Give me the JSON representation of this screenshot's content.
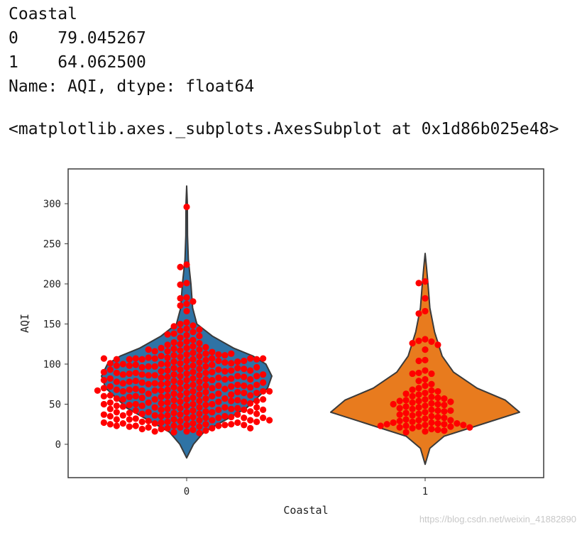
{
  "output": {
    "series_name": "Coastal",
    "rows": [
      {
        "index": "0",
        "value": "79.045267"
      },
      {
        "index": "1",
        "value": "64.062500"
      }
    ],
    "footer": "Name: AQI, dtype: float64",
    "repr": "<matplotlib.axes._subplots.AxesSubplot at 0x1d86b025e48>"
  },
  "watermark": "https://blog.csdn.net/weixin_41882890",
  "chart_data": {
    "type": "violin+swarm",
    "xlabel": "Coastal",
    "ylabel": "AQI",
    "categories": [
      "0",
      "1"
    ],
    "ylim": [
      -42,
      345
    ],
    "yticks": [
      0,
      50,
      100,
      150,
      200,
      250,
      300
    ],
    "grid": false,
    "colors": {
      "violin_0": "#2f73a5",
      "violin_1": "#e87b1e",
      "points": "#ff0000",
      "edge": "#3a3a3a"
    },
    "violins": [
      {
        "category": "0",
        "profile": [
          [
            -17,
            0
          ],
          [
            0,
            0.08
          ],
          [
            15,
            0.2
          ],
          [
            30,
            0.45
          ],
          [
            45,
            0.7
          ],
          [
            60,
            0.85
          ],
          [
            70,
            0.95
          ],
          [
            85,
            1.0
          ],
          [
            100,
            0.93
          ],
          [
            110,
            0.78
          ],
          [
            120,
            0.55
          ],
          [
            135,
            0.3
          ],
          [
            150,
            0.12
          ],
          [
            170,
            0.07
          ],
          [
            200,
            0.05
          ],
          [
            230,
            0.02
          ],
          [
            260,
            0.01
          ],
          [
            300,
            0.008
          ],
          [
            322,
            0
          ]
        ]
      },
      {
        "category": "1",
        "profile": [
          [
            -25,
            0
          ],
          [
            -5,
            0.05
          ],
          [
            10,
            0.2
          ],
          [
            25,
            0.6
          ],
          [
            40,
            1.0
          ],
          [
            55,
            0.85
          ],
          [
            70,
            0.55
          ],
          [
            90,
            0.3
          ],
          [
            110,
            0.18
          ],
          [
            140,
            0.1
          ],
          [
            170,
            0.05
          ],
          [
            200,
            0.03
          ],
          [
            220,
            0.015
          ],
          [
            238,
            0
          ]
        ]
      }
    ],
    "swarm": [
      {
        "category": "0",
        "values": [
          296,
          224,
          221,
          201,
          199,
          183,
          182,
          178,
          175,
          173,
          166,
          152,
          150,
          148,
          147,
          144,
          143,
          142,
          140,
          138,
          137,
          136,
          135,
          133,
          130,
          128,
          127,
          126,
          125,
          124,
          122,
          121,
          120,
          120,
          119,
          118,
          117,
          116,
          115,
          114,
          113,
          112,
          111,
          110,
          110,
          109,
          108,
          107,
          107,
          106,
          105,
          104,
          104,
          103,
          102,
          101,
          100,
          100,
          99,
          98,
          97,
          97,
          96,
          95,
          94,
          93,
          93,
          92,
          91,
          90,
          90,
          89,
          88,
          87,
          86,
          86,
          85,
          84,
          83,
          83,
          82,
          81,
          80,
          80,
          79,
          78,
          77,
          76,
          76,
          75,
          74,
          73,
          73,
          72,
          71,
          70,
          70,
          69,
          68,
          67,
          67,
          66,
          65,
          64,
          63,
          63,
          62,
          61,
          60,
          60,
          59,
          58,
          57,
          56,
          56,
          55,
          54,
          53,
          53,
          52,
          51,
          50,
          50,
          49,
          48,
          47,
          46,
          46,
          45,
          44,
          43,
          43,
          42,
          41,
          40,
          40,
          39,
          38,
          37,
          36,
          36,
          35,
          34,
          33,
          33,
          32,
          31,
          30,
          30,
          29,
          28,
          27,
          26,
          26,
          25,
          24,
          23,
          23,
          22,
          21,
          20,
          20,
          19,
          18,
          17,
          16,
          16,
          15,
          14,
          112,
          108,
          102,
          97,
          91,
          86,
          81,
          75,
          69,
          63,
          57,
          52,
          46,
          40,
          35,
          29,
          24,
          116,
          106,
          96,
          87,
          77,
          67,
          58,
          48,
          38,
          28,
          101,
          92,
          82,
          72,
          62,
          54,
          44,
          34,
          25,
          118,
          99,
          89,
          79,
          69,
          60,
          50,
          42,
          32,
          23,
          107,
          95,
          85,
          74,
          65,
          55,
          45,
          37,
          27,
          103,
          88,
          78,
          68,
          59,
          49,
          39,
          31,
          21,
          94,
          84,
          73,
          64,
          53,
          43,
          33,
          26,
          19,
          111,
          98,
          87,
          76,
          66,
          56,
          47,
          36,
          30,
          22,
          106,
          92,
          81,
          71,
          61,
          51,
          41,
          31,
          24,
          100,
          89,
          78,
          68,
          57,
          48,
          38,
          28,
          20,
          96,
          85,
          74,
          64,
          54,
          44,
          35,
          25,
          113,
          104,
          93,
          82,
          72,
          61,
          52,
          43,
          33,
          23,
          107,
          98,
          87,
          77,
          66,
          56,
          46,
          37,
          27,
          101,
          90,
          80,
          70,
          60,
          50,
          40,
          30,
          66,
          67,
          106,
          106,
          107,
          107
        ]
      },
      {
        "category": "1",
        "values": [
          203,
          201,
          182,
          166,
          163,
          131,
          129,
          128,
          126,
          124,
          118,
          105,
          104,
          92,
          89,
          88,
          88,
          81,
          79,
          75,
          73,
          70,
          68,
          67,
          66,
          64,
          63,
          62,
          60,
          59,
          58,
          57,
          56,
          55,
          54,
          54,
          53,
          52,
          51,
          50,
          50,
          49,
          48,
          47,
          46,
          45,
          44,
          43,
          42,
          42,
          41,
          40,
          39,
          38,
          37,
          36,
          35,
          34,
          33,
          32,
          31,
          30,
          30,
          29,
          28,
          27,
          27,
          26,
          26,
          25,
          25,
          24,
          24,
          23,
          23,
          22,
          22,
          21,
          21,
          20,
          19,
          18,
          17,
          16,
          15
        ]
      }
    ]
  }
}
